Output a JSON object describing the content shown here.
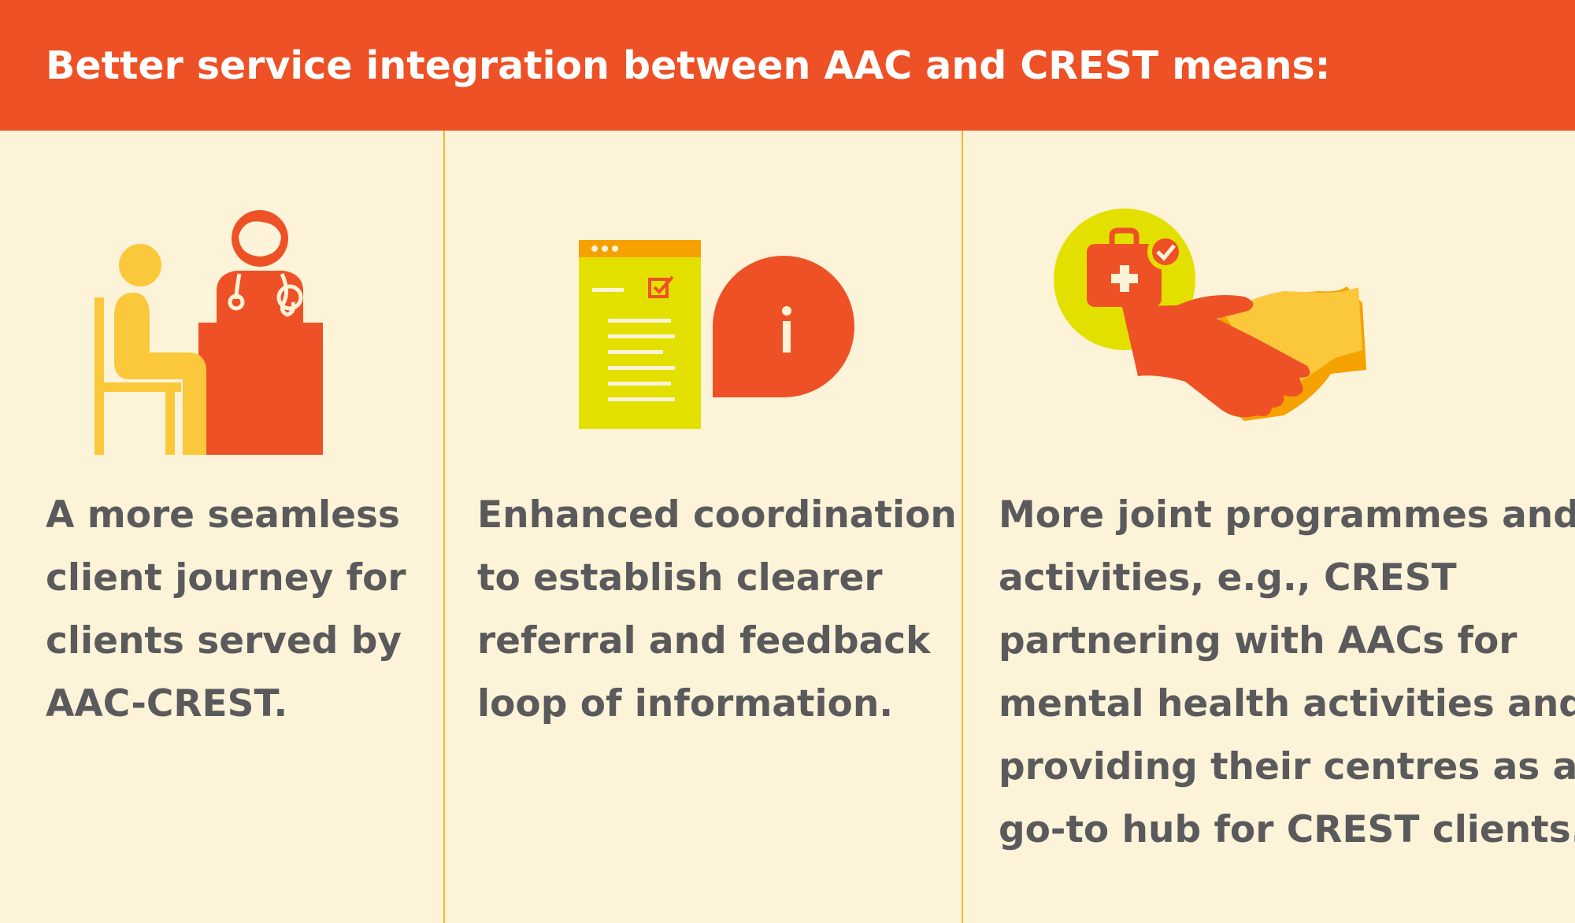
{
  "header": {
    "title": "Better service integration between AAC and CREST means:"
  },
  "colors": {
    "header_background": "#ee5125",
    "page_background": "#fdf3d8",
    "divider": "#f5b335",
    "text": "#5a5a5c",
    "orange_red": "#ee5125",
    "yellow": "#fbc83b",
    "lime": "#e3e000",
    "amber": "#f5a100"
  },
  "columns": [
    {
      "icon": "person-at-doctor-desk-icon",
      "caption_lines": [
        "A more seamless",
        "client journey for",
        "clients served by",
        "AAC-CREST."
      ]
    },
    {
      "icon": "document-with-info-bubble-icon",
      "caption_lines": [
        "Enhanced coordination",
        "to establish clearer",
        "referral and feedback",
        "loop of information."
      ]
    },
    {
      "icon": "medical-kit-handshake-icon",
      "caption_lines": [
        "More joint programmes and",
        "activities, e.g., CREST",
        "partnering with AACs for",
        "mental health activities and",
        "providing their centres as a",
        "go-to hub for CREST clients."
      ]
    }
  ]
}
